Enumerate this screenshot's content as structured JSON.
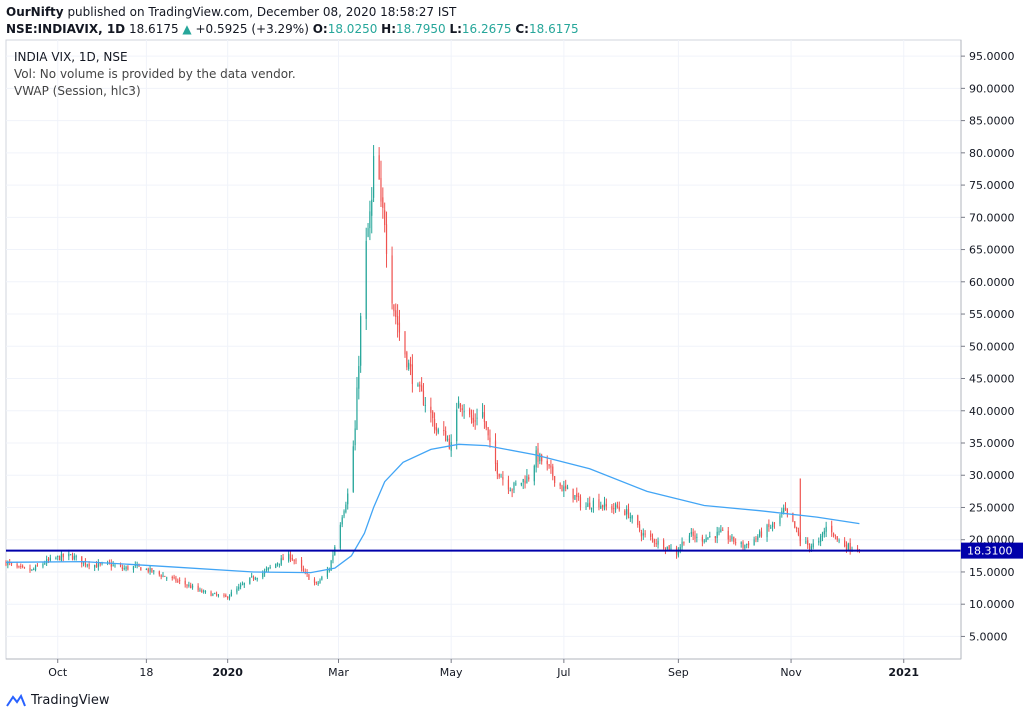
{
  "header": {
    "publisher": "OurNifty",
    "published_text": "published on TradingView.com, December 08, 2020 18:58:27 IST",
    "symbol": "NSE:INDIAVIX, 1D",
    "last": "18.6175",
    "change": "+0.5925 (+3.29%)",
    "o_label": "O:",
    "o_val": "18.0250",
    "h_label": "H:",
    "h_val": "18.7950",
    "l_label": "L:",
    "l_val": "16.2675",
    "c_label": "C:",
    "c_val": "18.6175"
  },
  "legend": {
    "title": "INDIA VIX, 1D, NSE",
    "vol": "Vol: No volume is provided by the data vendor.",
    "vwap": "VWAP (Session, hlc3)"
  },
  "footer": {
    "brand": "TradingView"
  },
  "colors": {
    "up": "#26a69a",
    "down": "#ef5350",
    "vwap": "#42a5f5",
    "hline": "#0000aa"
  },
  "chart_data": {
    "type": "candlestick",
    "y_range": [
      1.5,
      97.5
    ],
    "y_ticks": [
      "95.0000",
      "90.0000",
      "85.0000",
      "80.0000",
      "75.0000",
      "70.0000",
      "65.0000",
      "60.0000",
      "55.0000",
      "50.0000",
      "45.0000",
      "40.0000",
      "35.0000",
      "30.0000",
      "25.0000",
      "20.0000",
      "15.0000",
      "10.0000",
      "5.0000"
    ],
    "x_range": [
      "2019-09-03",
      "2021-02-01"
    ],
    "x_ticks": [
      {
        "label": "Oct",
        "date": "2019-10-01",
        "bold": false
      },
      {
        "label": "18",
        "date": "2019-11-18",
        "bold": false
      },
      {
        "label": "2020",
        "date": "2020-01-01",
        "bold": true
      },
      {
        "label": "Mar",
        "date": "2020-03-01",
        "bold": false
      },
      {
        "label": "May",
        "date": "2020-05-01",
        "bold": false
      },
      {
        "label": "Jul",
        "date": "2020-07-01",
        "bold": false
      },
      {
        "label": "Sep",
        "date": "2020-09-01",
        "bold": false
      },
      {
        "label": "Nov",
        "date": "2020-11-01",
        "bold": false
      },
      {
        "label": "2021",
        "date": "2021-01-01",
        "bold": true
      }
    ],
    "horizontal_line": {
      "value": 18.31,
      "label": "18.3100"
    },
    "close_path": [
      [
        "2019-09-03",
        16.5
      ],
      [
        "2019-09-10",
        15.5
      ],
      [
        "2019-09-17",
        15.2
      ],
      [
        "2019-09-24",
        16.5
      ],
      [
        "2019-10-01",
        17.2
      ],
      [
        "2019-10-08",
        17.5
      ],
      [
        "2019-10-15",
        16.5
      ],
      [
        "2019-10-22",
        16.0
      ],
      [
        "2019-10-29",
        16.2
      ],
      [
        "2019-11-05",
        15.5
      ],
      [
        "2019-11-12",
        15.8
      ],
      [
        "2019-11-19",
        15.3
      ],
      [
        "2019-11-26",
        14.5
      ],
      [
        "2019-12-03",
        13.8
      ],
      [
        "2019-12-10",
        13.0
      ],
      [
        "2019-12-17",
        12.0
      ],
      [
        "2019-12-24",
        11.5
      ],
      [
        "2019-12-31",
        11.0
      ],
      [
        "2020-01-07",
        12.5
      ],
      [
        "2020-01-14",
        14.0
      ],
      [
        "2020-01-21",
        15.0
      ],
      [
        "2020-01-28",
        16.5
      ],
      [
        "2020-02-04",
        17.5
      ],
      [
        "2020-02-11",
        15.0
      ],
      [
        "2020-02-18",
        13.0
      ],
      [
        "2020-02-25",
        15.5
      ],
      [
        "2020-02-28",
        19.0
      ],
      [
        "2020-03-03",
        24.0
      ],
      [
        "2020-03-06",
        27.0
      ],
      [
        "2020-03-10",
        37.0
      ],
      [
        "2020-03-12",
        48.0
      ],
      [
        "2020-03-14",
        60.0
      ],
      [
        "2020-03-17",
        68.0
      ],
      [
        "2020-03-19",
        72.0
      ],
      [
        "2020-03-21",
        84.0
      ],
      [
        "2020-03-24",
        71.0
      ],
      [
        "2020-03-26",
        70.0
      ],
      [
        "2020-03-28",
        62.0
      ],
      [
        "2020-03-31",
        56.0
      ],
      [
        "2020-04-04",
        51.0
      ],
      [
        "2020-04-08",
        47.0
      ],
      [
        "2020-04-13",
        43.0
      ],
      [
        "2020-04-18",
        41.0
      ],
      [
        "2020-04-23",
        37.0
      ],
      [
        "2020-04-28",
        36.0
      ],
      [
        "2020-05-02",
        34.0
      ],
      [
        "2020-05-05",
        42.0
      ],
      [
        "2020-05-09",
        40.0
      ],
      [
        "2020-05-13",
        38.0
      ],
      [
        "2020-05-17",
        41.0
      ],
      [
        "2020-05-20",
        37.0
      ],
      [
        "2020-05-23",
        33.0
      ],
      [
        "2020-05-26",
        31.0
      ],
      [
        "2020-05-30",
        29.0
      ],
      [
        "2020-06-03",
        28.0
      ],
      [
        "2020-06-08",
        29.0
      ],
      [
        "2020-06-13",
        30.0
      ],
      [
        "2020-06-16",
        33.0
      ],
      [
        "2020-06-20",
        32.0
      ],
      [
        "2020-06-25",
        30.0
      ],
      [
        "2020-06-30",
        28.0
      ],
      [
        "2020-07-06",
        27.0
      ],
      [
        "2020-07-12",
        25.0
      ],
      [
        "2020-07-18",
        26.0
      ],
      [
        "2020-07-24",
        25.0
      ],
      [
        "2020-07-30",
        25.0
      ],
      [
        "2020-08-05",
        24.0
      ],
      [
        "2020-08-12",
        21.0
      ],
      [
        "2020-08-18",
        20.0
      ],
      [
        "2020-08-25",
        19.0
      ],
      [
        "2020-08-31",
        18.0
      ],
      [
        "2020-09-06",
        21.0
      ],
      [
        "2020-09-12",
        20.0
      ],
      [
        "2020-09-18",
        20.5
      ],
      [
        "2020-09-24",
        21.0
      ],
      [
        "2020-09-30",
        20.0
      ],
      [
        "2020-10-06",
        19.0
      ],
      [
        "2020-10-12",
        20.0
      ],
      [
        "2020-10-18",
        21.5
      ],
      [
        "2020-10-24",
        22.5
      ],
      [
        "2020-10-28",
        24.5
      ],
      [
        "2020-11-01",
        23.0
      ],
      [
        "2020-11-06",
        20.0
      ],
      [
        "2020-11-11",
        19.0
      ],
      [
        "2020-11-16",
        19.5
      ],
      [
        "2020-11-21",
        22.5
      ],
      [
        "2020-11-26",
        20.0
      ],
      [
        "2020-12-01",
        19.0
      ],
      [
        "2020-12-08",
        18.6
      ]
    ],
    "vwap": [
      [
        "2019-09-03",
        16.5
      ],
      [
        "2019-10-15",
        16.6
      ],
      [
        "2019-12-01",
        15.8
      ],
      [
        "2020-01-15",
        15.0
      ],
      [
        "2020-02-15",
        14.9
      ],
      [
        "2020-02-28",
        15.6
      ],
      [
        "2020-03-08",
        17.5
      ],
      [
        "2020-03-15",
        21.0
      ],
      [
        "2020-03-20",
        25.0
      ],
      [
        "2020-03-26",
        29.0
      ],
      [
        "2020-04-05",
        32.0
      ],
      [
        "2020-04-20",
        34.0
      ],
      [
        "2020-05-05",
        34.8
      ],
      [
        "2020-05-20",
        34.6
      ],
      [
        "2020-06-15",
        33.2
      ],
      [
        "2020-07-15",
        31.0
      ],
      [
        "2020-08-15",
        27.5
      ],
      [
        "2020-09-15",
        25.3
      ],
      [
        "2020-10-15",
        24.5
      ],
      [
        "2020-11-15",
        23.5
      ],
      [
        "2020-12-08",
        22.5
      ]
    ],
    "spikes": [
      {
        "date": "2020-11-06",
        "high": 29.5,
        "low": 19.0
      }
    ]
  }
}
